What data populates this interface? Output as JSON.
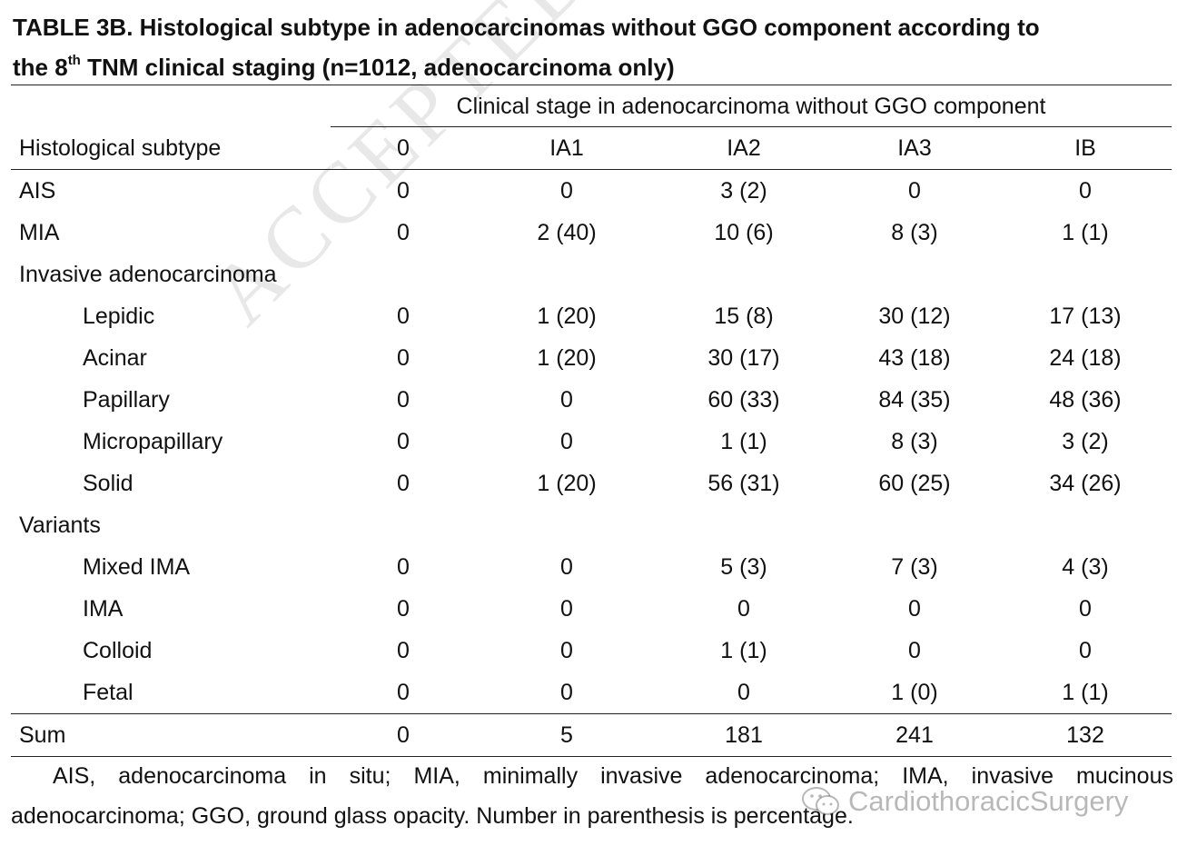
{
  "title": {
    "line1": "TABLE 3B. Histological subtype in adenocarcinomas without GGO component according to",
    "line2_pre": "the 8",
    "line2_sup": "th",
    "line2_post": " TNM clinical staging (n=1012, adenocarcinoma only)"
  },
  "table": {
    "spanner": "Clinical stage in adenocarcinoma without GGO component",
    "row_header": "Histological subtype",
    "columns": [
      "0",
      "IA1",
      "IA2",
      "IA3",
      "IB"
    ],
    "rows": [
      {
        "label": "AIS",
        "indent": false,
        "values": [
          "0",
          "0",
          "3 (2)",
          "0",
          "0"
        ]
      },
      {
        "label": "MIA",
        "indent": false,
        "values": [
          "0",
          "2 (40)",
          "10 (6)",
          "8 (3)",
          "1 (1)"
        ]
      },
      {
        "label": "Invasive adenocarcinoma",
        "indent": false,
        "values": [
          "",
          "",
          "",
          "",
          ""
        ]
      },
      {
        "label": "Lepidic",
        "indent": true,
        "values": [
          "0",
          "1 (20)",
          "15 (8)",
          "30 (12)",
          "17 (13)"
        ]
      },
      {
        "label": "Acinar",
        "indent": true,
        "values": [
          "0",
          "1 (20)",
          "30 (17)",
          "43 (18)",
          "24 (18)"
        ]
      },
      {
        "label": "Papillary",
        "indent": true,
        "values": [
          "0",
          "0",
          "60 (33)",
          "84 (35)",
          "48 (36)"
        ]
      },
      {
        "label": "Micropapillary",
        "indent": true,
        "values": [
          "0",
          "0",
          "1 (1)",
          "8 (3)",
          "3 (2)"
        ]
      },
      {
        "label": "Solid",
        "indent": true,
        "values": [
          "0",
          "1 (20)",
          "56 (31)",
          "60 (25)",
          "34 (26)"
        ]
      },
      {
        "label": "Variants",
        "indent": false,
        "values": [
          "",
          "",
          "",
          "",
          ""
        ]
      },
      {
        "label": "Mixed IMA",
        "indent": true,
        "values": [
          "0",
          "0",
          "5 (3)",
          "7 (3)",
          "4 (3)"
        ]
      },
      {
        "label": "IMA",
        "indent": true,
        "values": [
          "0",
          "0",
          "0",
          "0",
          "0"
        ]
      },
      {
        "label": "Colloid",
        "indent": true,
        "values": [
          "0",
          "0",
          "1 (1)",
          "0",
          "0"
        ]
      },
      {
        "label": "Fetal",
        "indent": true,
        "values": [
          "0",
          "0",
          "0",
          "1 (0)",
          "1 (1)"
        ]
      }
    ],
    "sum": {
      "label": "Sum",
      "values": [
        "0",
        "5",
        "181",
        "241",
        "132"
      ]
    }
  },
  "footnote": "AIS, adenocarcinoma in situ; MIA, minimally invasive adenocarcinoma; IMA, invasive mucinous adenocarcinoma; GGO, ground glass opacity. Number in parenthesis is percentage.",
  "watermark": "ACCEPTED MA",
  "brand": {
    "text": "CardiothoracicSurgery",
    "icon": "wechat-icon"
  }
}
